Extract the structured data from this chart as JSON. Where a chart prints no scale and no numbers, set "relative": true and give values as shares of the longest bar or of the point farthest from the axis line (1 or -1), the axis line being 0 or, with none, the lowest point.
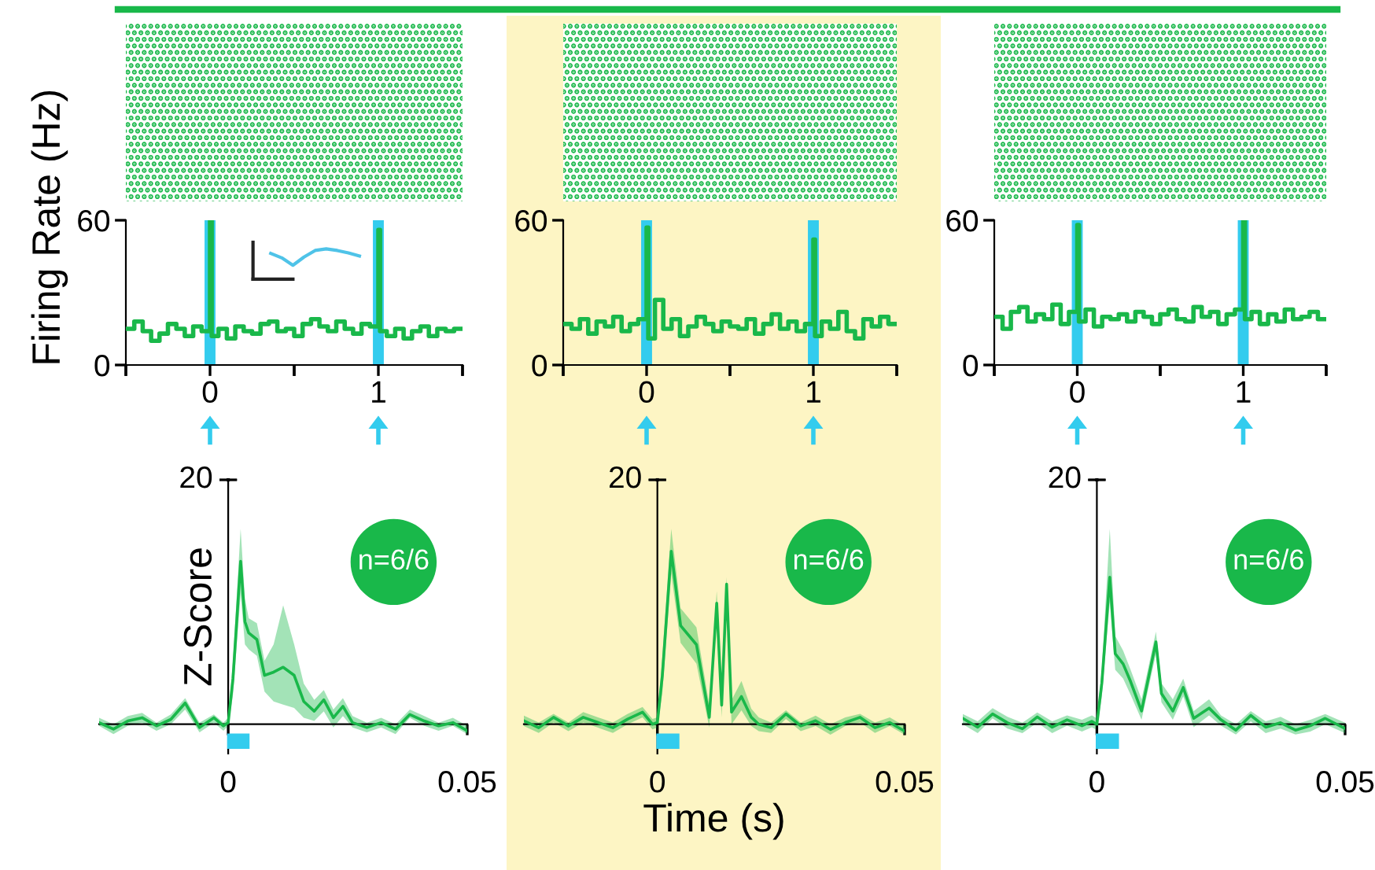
{
  "chart_data": [
    {
      "type": "step",
      "ylabel": "Firing Rate (Hz)",
      "color": "#19b84a",
      "x": [
        -0.5,
        -0.45,
        -0.4,
        -0.35,
        -0.3,
        -0.25,
        -0.2,
        -0.15,
        -0.1,
        -0.05,
        0,
        0.01,
        0.05,
        0.1,
        0.15,
        0.2,
        0.25,
        0.3,
        0.35,
        0.4,
        0.45,
        0.5,
        0.55,
        0.6,
        0.65,
        0.7,
        0.75,
        0.8,
        0.85,
        0.9,
        0.95,
        1,
        1.01,
        1.05,
        1.1,
        1.15,
        1.2,
        1.25,
        1.3,
        1.35,
        1.4,
        1.45,
        1.5
      ],
      "values": [
        15,
        18,
        14,
        10,
        13,
        17,
        15,
        12,
        16,
        14,
        60,
        12,
        15,
        11,
        16,
        14,
        13,
        17,
        18,
        14,
        15,
        12,
        17,
        19,
        16,
        14,
        18,
        15,
        13,
        17,
        16,
        56,
        14,
        12,
        15,
        11,
        14,
        16,
        12,
        15,
        14,
        15,
        15
      ],
      "xlim": [
        -0.5,
        1.5
      ],
      "xticks": [
        {
          "value": -0.5,
          "label": null
        },
        0,
        {
          "value": 0.5,
          "label": null
        },
        1,
        {
          "value": 1.5,
          "label": null
        }
      ],
      "ylim": [
        0,
        60
      ],
      "yticks": [
        0,
        60
      ],
      "ref_lines": [
        {
          "axis": "x",
          "value": 0,
          "color": "#33ccee"
        },
        {
          "axis": "x",
          "value": 1,
          "color": "#33ccee"
        }
      ]
    },
    {
      "type": "line",
      "relative": true,
      "categories": [
        null,
        null,
        null,
        null,
        null,
        null,
        null,
        null,
        null
      ],
      "color": "#4fc3e8",
      "values": [
        0.72,
        0.45,
        0,
        0.5,
        0.9,
        1,
        0.9,
        0.75,
        0.56
      ]
    },
    {
      "type": "step",
      "color": "#19b84a",
      "x": [
        -0.5,
        -0.45,
        -0.4,
        -0.35,
        -0.3,
        -0.25,
        -0.2,
        -0.15,
        -0.1,
        -0.05,
        0,
        0.01,
        0.05,
        0.1,
        0.15,
        0.2,
        0.25,
        0.3,
        0.35,
        0.4,
        0.45,
        0.5,
        0.55,
        0.6,
        0.65,
        0.7,
        0.75,
        0.8,
        0.85,
        0.9,
        0.95,
        1,
        1.01,
        1.05,
        1.1,
        1.15,
        1.2,
        1.25,
        1.3,
        1.35,
        1.4,
        1.45,
        1.5
      ],
      "values": [
        17,
        15,
        19,
        13,
        18,
        16,
        20,
        14,
        17,
        19,
        57,
        11,
        27,
        15,
        19,
        12,
        16,
        20,
        17,
        14,
        18,
        16,
        15,
        19,
        13,
        17,
        21,
        15,
        18,
        14,
        17,
        52,
        12,
        18,
        15,
        22,
        14,
        11,
        19,
        16,
        20,
        17,
        17
      ],
      "xlim": [
        -0.5,
        1.5
      ],
      "xticks": [
        {
          "value": -0.5,
          "label": null
        },
        0,
        {
          "value": 0.5,
          "label": null
        },
        1,
        {
          "value": 1.5,
          "label": null
        }
      ],
      "ylim": [
        0,
        60
      ],
      "yticks": [
        0,
        60
      ],
      "ref_lines": [
        {
          "axis": "x",
          "value": 0,
          "color": "#33ccee"
        },
        {
          "axis": "x",
          "value": 1,
          "color": "#33ccee"
        }
      ]
    },
    {
      "type": "step",
      "color": "#19b84a",
      "x": [
        -0.5,
        -0.45,
        -0.4,
        -0.35,
        -0.3,
        -0.25,
        -0.2,
        -0.15,
        -0.1,
        -0.05,
        0,
        0.01,
        0.05,
        0.1,
        0.15,
        0.2,
        0.25,
        0.3,
        0.35,
        0.4,
        0.45,
        0.5,
        0.55,
        0.6,
        0.65,
        0.7,
        0.75,
        0.8,
        0.85,
        0.9,
        0.95,
        1,
        1.01,
        1.05,
        1.1,
        1.15,
        1.2,
        1.25,
        1.3,
        1.35,
        1.4,
        1.45,
        1.5
      ],
      "values": [
        20,
        15,
        22,
        24,
        18,
        21,
        19,
        25,
        17,
        22,
        58,
        18,
        23,
        16,
        20,
        19,
        21,
        18,
        22,
        20,
        17,
        21,
        23,
        19,
        18,
        24,
        20,
        22,
        17,
        21,
        23,
        60,
        19,
        22,
        17,
        21,
        18,
        23,
        19,
        20,
        22,
        19,
        19
      ],
      "xlim": [
        -0.5,
        1.5
      ],
      "xticks": [
        {
          "value": -0.5,
          "label": null
        },
        0,
        {
          "value": 0.5,
          "label": null
        },
        1,
        {
          "value": 1.5,
          "label": null
        }
      ],
      "ylim": [
        0,
        60
      ],
      "yticks": [
        0,
        60
      ],
      "ref_lines": [
        {
          "axis": "x",
          "value": 0,
          "color": "#33ccee"
        },
        {
          "axis": "x",
          "value": 1,
          "color": "#33ccee"
        }
      ]
    },
    {
      "type": "line",
      "relative": true,
      "ylabel": "Z-Score",
      "annotations": [
        "20",
        "n=6/6"
      ],
      "series": [
        {
          "color": "#19b84a",
          "x": [
            -0.027,
            -0.024,
            -0.021,
            -0.018,
            -0.015,
            -0.012,
            -0.009,
            -0.006,
            -0.003,
            -0.001,
            0,
            0.001,
            0.0026,
            0.0035,
            0.0043,
            0.006,
            0.0076,
            0.0095,
            0.0115,
            0.0138,
            0.0158,
            0.018,
            0.02,
            0.022,
            0.024,
            0.026,
            0.029,
            0.032,
            0.035,
            0.038,
            0.041,
            0.044,
            0.047,
            0.05
          ],
          "values": [
            0.01,
            -0.03,
            0.02,
            0.04,
            -0.01,
            0.03,
            0.13,
            -0.02,
            0.04,
            -0.01,
            0.01,
            0.28,
            1,
            0.63,
            0.56,
            0.52,
            0.3,
            0.32,
            0.35,
            0.3,
            0.14,
            0.08,
            0.15,
            0.04,
            0.11,
            0.01,
            -0.02,
            0.01,
            -0.03,
            0.06,
            0.02,
            -0.01,
            0.01,
            -0.04
          ],
          "upper": [
            0.04,
            0,
            0.05,
            0.07,
            0.01,
            0.06,
            0.16,
            0.01,
            0.06,
            0.01,
            0.04,
            0.39,
            1.2,
            0.77,
            0.65,
            0.62,
            0.39,
            0.49,
            0.73,
            0.49,
            0.25,
            0.15,
            0.21,
            0.09,
            0.16,
            0.05,
            0.01,
            0.04,
            0,
            0.09,
            0.05,
            0.01,
            0.04,
            -0.01
          ],
          "lower": [
            -0.01,
            -0.06,
            -0.01,
            0.01,
            -0.04,
            0,
            0.09,
            -0.05,
            0.01,
            -0.04,
            -0.01,
            0.18,
            0.8,
            0.49,
            0.46,
            0.42,
            0.2,
            0.14,
            0.12,
            0.1,
            0.04,
            0.02,
            0.08,
            -0.02,
            0.05,
            -0.02,
            -0.05,
            -0.02,
            -0.06,
            0.04,
            -0.01,
            -0.04,
            -0.01,
            -0.06
          ]
        }
      ],
      "xlim": [
        -0.027,
        0.05
      ],
      "xticks": [
        0,
        0.05
      ]
    },
    {
      "type": "line",
      "relative": true,
      "xlabel": "Time (s)",
      "annotations": [
        "20",
        "n=6/6"
      ],
      "series": [
        {
          "color": "#19b84a",
          "x": [
            -0.027,
            -0.024,
            -0.021,
            -0.018,
            -0.015,
            -0.012,
            -0.009,
            -0.006,
            -0.003,
            -0.001,
            0,
            0.001,
            0.0028,
            0.0047,
            0.0079,
            0.0105,
            0.012,
            0.013,
            0.014,
            0.015,
            0.017,
            0.019,
            0.0205,
            0.023,
            0.026,
            0.029,
            0.032,
            0.035,
            0.038,
            0.041,
            0.044,
            0.047,
            0.05
          ],
          "values": [
            0.02,
            -0.02,
            0.04,
            -0.01,
            0.04,
            0.01,
            -0.02,
            0.03,
            0.07,
            0,
            0.01,
            0.28,
            1,
            0.57,
            0.46,
            0.04,
            0.7,
            0.11,
            0.81,
            0.07,
            0.16,
            0.04,
            0,
            -0.02,
            0.06,
            -0.01,
            0.02,
            -0.03,
            0.01,
            0.04,
            -0.02,
            0.01,
            -0.04
          ],
          "upper": [
            0.05,
            0.01,
            0.06,
            0.01,
            0.07,
            0.04,
            0.01,
            0.06,
            0.1,
            0.03,
            0.04,
            0.39,
            1.13,
            0.67,
            0.56,
            0.11,
            0.77,
            0.18,
            0.85,
            0.14,
            0.25,
            0.09,
            0.04,
            0.01,
            0.08,
            0.01,
            0.05,
            0,
            0.04,
            0.06,
            0.01,
            0.04,
            -0.01
          ],
          "lower": [
            -0.01,
            -0.05,
            0.01,
            -0.04,
            0.01,
            -0.02,
            -0.05,
            0,
            0.04,
            -0.03,
            -0.02,
            0.18,
            0.87,
            0.47,
            0.35,
            -0.02,
            0.63,
            0.04,
            0.77,
            0,
            0.08,
            -0.01,
            -0.04,
            -0.05,
            0.03,
            -0.04,
            -0.01,
            -0.06,
            -0.01,
            0.01,
            -0.05,
            -0.01,
            -0.06
          ]
        }
      ],
      "xlim": [
        -0.027,
        0.05
      ],
      "xticks": [
        0,
        0.05
      ]
    },
    {
      "type": "line",
      "relative": true,
      "annotations": [
        "20",
        "n=6/6"
      ],
      "series": [
        {
          "color": "#19b84a",
          "x": [
            -0.027,
            -0.024,
            -0.021,
            -0.018,
            -0.015,
            -0.012,
            -0.009,
            -0.006,
            -0.003,
            -0.001,
            0,
            0.001,
            0.0026,
            0.0037,
            0.0053,
            0.0068,
            0.009,
            0.0119,
            0.013,
            0.0153,
            0.0174,
            0.0195,
            0.0226,
            0.025,
            0.028,
            0.031,
            0.034,
            0.037,
            0.04,
            0.043,
            0.046,
            0.05
          ],
          "values": [
            0.04,
            -0.02,
            0.07,
            0.01,
            -0.03,
            0.05,
            -0.02,
            0.03,
            -0.01,
            0.02,
            0,
            0.28,
            1,
            0.48,
            0.41,
            0.29,
            0.09,
            0.56,
            0.21,
            0.09,
            0.25,
            0.04,
            0.11,
            0.03,
            -0.04,
            0.06,
            -0.02,
            0.01,
            -0.04,
            -0.01,
            0.04,
            -0.03
          ],
          "upper": [
            0.07,
            0.02,
            0.11,
            0.05,
            0.01,
            0.08,
            0.02,
            0.06,
            0.03,
            0.06,
            0.04,
            0.37,
            1.33,
            0.6,
            0.5,
            0.37,
            0.17,
            0.63,
            0.28,
            0.17,
            0.31,
            0.09,
            0.17,
            0.06,
            0,
            0.09,
            0.02,
            0.05,
            0,
            0.03,
            0.07,
            0.01
          ],
          "lower": [
            0,
            -0.06,
            0.04,
            -0.03,
            -0.06,
            0.01,
            -0.06,
            -0.01,
            -0.05,
            -0.02,
            -0.04,
            0.19,
            0.83,
            0.37,
            0.31,
            0.2,
            0.03,
            0.48,
            0.15,
            0.03,
            0.19,
            -0.02,
            0.06,
            -0.01,
            -0.07,
            0.02,
            -0.06,
            -0.03,
            -0.07,
            -0.05,
            0,
            -0.06
          ]
        }
      ],
      "xlim": [
        -0.027,
        0.05
      ],
      "xticks": [
        0,
        0.05
      ]
    }
  ]
}
